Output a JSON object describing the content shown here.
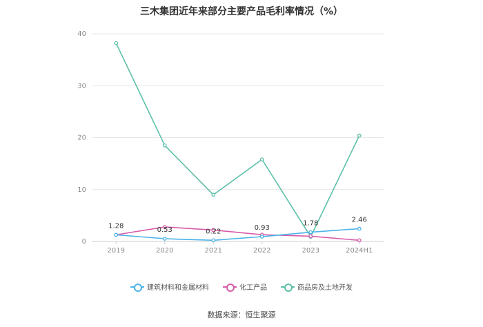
{
  "title": "三木集团近年来部分主要产品毛利率情况（%）",
  "source": "数据来源：恒生聚源",
  "chart_data": {
    "type": "line",
    "title": "三木集团近年来部分主要产品毛利率情况（%）",
    "categories": [
      "2019",
      "2020",
      "2021",
      "2022",
      "2023",
      "2024H1"
    ],
    "ylim": [
      0,
      40
    ],
    "yticks": [
      "0",
      "10",
      "20",
      "30",
      "40"
    ],
    "grid": true,
    "legend_position": "bottom",
    "series": [
      {
        "name": "建筑材料和金属材料",
        "color": "#4ab3e8",
        "values": [
          1.28,
          0.53,
          0.22,
          0.93,
          1.78,
          2.46
        ],
        "labels": [
          "1.28",
          "0.53",
          "0.22",
          "0.93",
          "1.78",
          "2.46"
        ]
      },
      {
        "name": "化工产品",
        "color": "#d85aa8",
        "values": [
          1.28,
          2.8,
          2.2,
          1.3,
          1.0,
          0.22
        ]
      },
      {
        "name": "商品房及土地开发",
        "color": "#5bbfa8",
        "values": [
          38.2,
          18.5,
          9.0,
          15.8,
          0.9,
          20.4
        ]
      }
    ]
  }
}
